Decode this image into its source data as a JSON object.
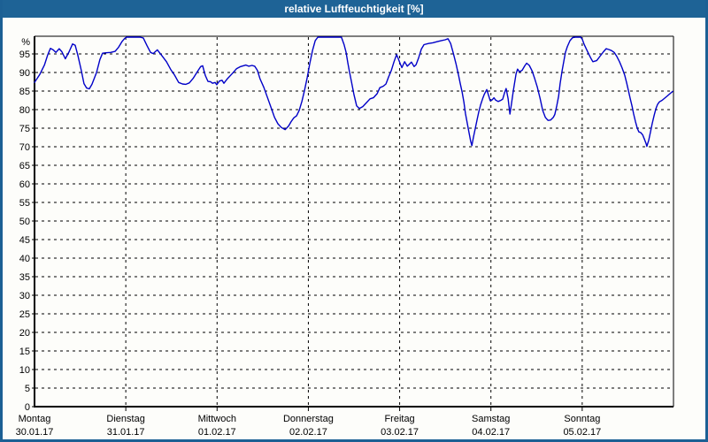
{
  "window": {
    "title": "relative Luftfeuchtigkeit [%]"
  },
  "colors": {
    "titlebar_bg": "#1e6396",
    "titlebar_text": "#ffffff",
    "window_border": "#1c6094",
    "plot_bg": "#fdfdfa",
    "grid": "#000000",
    "axis": "#000000",
    "series_line": "#0000c8"
  },
  "chart_data": {
    "type": "line",
    "title": "relative Luftfeuchtigkeit [%]",
    "ylabel": "%",
    "ylim": [
      0,
      100
    ],
    "yticks": [
      0,
      5,
      10,
      15,
      20,
      25,
      30,
      35,
      40,
      45,
      50,
      55,
      60,
      65,
      70,
      75,
      80,
      85,
      90,
      95
    ],
    "x_unit": "hours since Montag 00:00",
    "xlim": [
      0,
      168
    ],
    "grid": "dashed, horizontal every 5 %, vertical at each midnight",
    "legend_position": "none",
    "days": [
      {
        "name": "Montag",
        "date": "30.01.17"
      },
      {
        "name": "Dienstag",
        "date": "31.01.17"
      },
      {
        "name": "Mittwoch",
        "date": "01.02.17"
      },
      {
        "name": "Donnerstag",
        "date": "02.02.17"
      },
      {
        "name": "Freitag",
        "date": "03.02.17"
      },
      {
        "name": "Samstag",
        "date": "04.02.17"
      },
      {
        "name": "Sonntag",
        "date": "05.02.17"
      }
    ],
    "series": [
      {
        "name": "relative Luftfeuchtigkeit",
        "color": "#0000c8",
        "points": [
          [
            0,
            87.3
          ],
          [
            1.4,
            89.5
          ],
          [
            2.6,
            92.0
          ],
          [
            3.5,
            94.8
          ],
          [
            4.2,
            96.5
          ],
          [
            4.9,
            96.1
          ],
          [
            5.6,
            95.4
          ],
          [
            6.5,
            96.4
          ],
          [
            7.2,
            95.6
          ],
          [
            8.1,
            93.7
          ],
          [
            9.1,
            95.6
          ],
          [
            10.0,
            97.7
          ],
          [
            10.7,
            97.3
          ],
          [
            11.4,
            94.6
          ],
          [
            12.3,
            90.5
          ],
          [
            13.0,
            87.0
          ],
          [
            13.7,
            85.8
          ],
          [
            14.4,
            85.6
          ],
          [
            15.1,
            86.8
          ],
          [
            16.3,
            90.0
          ],
          [
            17.2,
            93.5
          ],
          [
            17.9,
            95.2
          ],
          [
            18.8,
            95.3
          ],
          [
            20.0,
            95.4
          ],
          [
            21.2,
            95.7
          ],
          [
            22.1,
            96.8
          ],
          [
            23.0,
            98.3
          ],
          [
            23.7,
            99.2
          ],
          [
            24.2,
            99.6
          ],
          [
            25.4,
            99.9
          ],
          [
            26.5,
            100
          ],
          [
            27.7,
            99.9
          ],
          [
            28.6,
            99.3
          ],
          [
            29.6,
            97.2
          ],
          [
            30.5,
            95.4
          ],
          [
            31.2,
            95.1
          ],
          [
            32.3,
            96.1
          ],
          [
            33.5,
            94.5
          ],
          [
            34.7,
            92.9
          ],
          [
            35.8,
            90.8
          ],
          [
            36.8,
            89.3
          ],
          [
            37.9,
            87.3
          ],
          [
            38.9,
            86.9
          ],
          [
            39.8,
            86.8
          ],
          [
            40.7,
            87.2
          ],
          [
            41.7,
            88.4
          ],
          [
            42.8,
            90.2
          ],
          [
            43.7,
            91.6
          ],
          [
            44.2,
            91.8
          ],
          [
            44.9,
            89.2
          ],
          [
            45.6,
            87.6
          ],
          [
            46.3,
            87.5
          ],
          [
            46.8,
            87.1
          ],
          [
            47.5,
            87.3
          ],
          [
            47.9,
            86.7
          ],
          [
            48.6,
            87.7
          ],
          [
            49.3,
            87.9
          ],
          [
            49.8,
            87.1
          ],
          [
            50.7,
            88.3
          ],
          [
            51.9,
            89.6
          ],
          [
            53.1,
            91.0
          ],
          [
            54.2,
            91.6
          ],
          [
            55.6,
            92.0
          ],
          [
            56.3,
            91.7
          ],
          [
            57.2,
            91.9
          ],
          [
            57.9,
            91.7
          ],
          [
            58.6,
            90.6
          ],
          [
            59.3,
            88.3
          ],
          [
            60.3,
            86.0
          ],
          [
            61.2,
            83.4
          ],
          [
            62.1,
            80.8
          ],
          [
            63.1,
            77.9
          ],
          [
            64.0,
            76.2
          ],
          [
            64.9,
            75.2
          ],
          [
            65.9,
            74.6
          ],
          [
            66.8,
            75.6
          ],
          [
            67.5,
            76.8
          ],
          [
            68.2,
            77.8
          ],
          [
            68.9,
            78.3
          ],
          [
            69.6,
            79.8
          ],
          [
            70.3,
            82.2
          ],
          [
            71.0,
            85.2
          ],
          [
            71.7,
            88.6
          ],
          [
            72.4,
            92.5
          ],
          [
            73.1,
            96.0
          ],
          [
            73.8,
            98.6
          ],
          [
            74.5,
            99.7
          ],
          [
            75.6,
            99.9
          ],
          [
            77.0,
            99.9
          ],
          [
            78.4,
            99.9
          ],
          [
            79.8,
            99.8
          ],
          [
            80.7,
            99.5
          ],
          [
            81.4,
            97.5
          ],
          [
            81.9,
            95.5
          ],
          [
            82.4,
            92.5
          ],
          [
            82.8,
            90.3
          ],
          [
            83.3,
            87.7
          ],
          [
            84.0,
            84.0
          ],
          [
            84.7,
            81.0
          ],
          [
            85.4,
            80.3
          ],
          [
            86.3,
            80.8
          ],
          [
            87.3,
            81.9
          ],
          [
            88.2,
            82.9
          ],
          [
            89.1,
            83.2
          ],
          [
            90.1,
            84.3
          ],
          [
            90.8,
            85.9
          ],
          [
            91.7,
            86.3
          ],
          [
            92.4,
            86.9
          ],
          [
            93.1,
            88.8
          ],
          [
            93.8,
            90.5
          ],
          [
            94.5,
            92.8
          ],
          [
            95.2,
            94.8
          ],
          [
            95.6,
            93.8
          ],
          [
            96.1,
            92.5
          ],
          [
            96.6,
            91.3
          ],
          [
            97.3,
            92.9
          ],
          [
            98.0,
            91.7
          ],
          [
            98.4,
            92.1
          ],
          [
            99.1,
            92.8
          ],
          [
            99.8,
            91.6
          ],
          [
            100.3,
            92.1
          ],
          [
            101.0,
            94.0
          ],
          [
            101.7,
            96.3
          ],
          [
            102.4,
            97.5
          ],
          [
            103.6,
            97.8
          ],
          [
            104.7,
            98.0
          ],
          [
            105.9,
            98.3
          ],
          [
            107.0,
            98.6
          ],
          [
            108.0,
            98.8
          ],
          [
            108.7,
            99.1
          ],
          [
            109.4,
            97.8
          ],
          [
            110.1,
            95.2
          ],
          [
            110.8,
            92.4
          ],
          [
            111.5,
            89.2
          ],
          [
            111.9,
            87.2
          ],
          [
            112.4,
            84.8
          ],
          [
            112.9,
            82.0
          ],
          [
            113.3,
            79.0
          ],
          [
            113.8,
            76.2
          ],
          [
            114.3,
            73.5
          ],
          [
            114.7,
            71.4
          ],
          [
            115.0,
            70.3
          ],
          [
            115.4,
            72.5
          ],
          [
            115.9,
            75.0
          ],
          [
            116.4,
            77.4
          ],
          [
            116.8,
            79.4
          ],
          [
            117.3,
            81.3
          ],
          [
            117.8,
            82.9
          ],
          [
            118.2,
            84.0
          ],
          [
            118.9,
            85.4
          ],
          [
            119.4,
            83.8
          ],
          [
            119.8,
            82.4
          ],
          [
            120.3,
            82.6
          ],
          [
            120.8,
            83.2
          ],
          [
            121.2,
            82.6
          ],
          [
            121.9,
            82.2
          ],
          [
            122.6,
            82.5
          ],
          [
            123.1,
            82.8
          ],
          [
            123.6,
            84.6
          ],
          [
            124.0,
            85.7
          ],
          [
            124.5,
            83.0
          ],
          [
            125.0,
            78.8
          ],
          [
            125.4,
            81.5
          ],
          [
            125.9,
            85.2
          ],
          [
            126.6,
            89.6
          ],
          [
            127.0,
            90.9
          ],
          [
            127.5,
            90.2
          ],
          [
            128.2,
            90.6
          ],
          [
            128.9,
            91.8
          ],
          [
            129.4,
            92.5
          ],
          [
            130.1,
            91.9
          ],
          [
            130.8,
            90.5
          ],
          [
            131.5,
            88.4
          ],
          [
            132.2,
            86.1
          ],
          [
            132.9,
            83.1
          ],
          [
            133.6,
            79.8
          ],
          [
            134.3,
            77.9
          ],
          [
            135.0,
            77.1
          ],
          [
            135.7,
            77.2
          ],
          [
            136.4,
            77.9
          ],
          [
            136.8,
            78.7
          ],
          [
            137.3,
            81.0
          ],
          [
            137.8,
            83.6
          ],
          [
            138.2,
            87.0
          ],
          [
            138.7,
            90.4
          ],
          [
            139.2,
            93.2
          ],
          [
            139.6,
            95.4
          ],
          [
            140.1,
            97.0
          ],
          [
            140.8,
            98.6
          ],
          [
            141.5,
            99.4
          ],
          [
            142.2,
            99.8
          ],
          [
            143.1,
            99.8
          ],
          [
            143.6,
            99.6
          ],
          [
            144.0,
            99.0
          ],
          [
            144.5,
            97.6
          ],
          [
            145.2,
            96.1
          ],
          [
            145.9,
            94.6
          ],
          [
            146.4,
            93.6
          ],
          [
            146.8,
            92.9
          ],
          [
            147.8,
            93.2
          ],
          [
            148.7,
            94.4
          ],
          [
            149.6,
            95.6
          ],
          [
            150.3,
            96.4
          ],
          [
            151.0,
            96.2
          ],
          [
            151.7,
            95.9
          ],
          [
            152.4,
            95.4
          ],
          [
            153.1,
            94.3
          ],
          [
            153.8,
            92.9
          ],
          [
            154.5,
            91.2
          ],
          [
            155.2,
            89.2
          ],
          [
            155.7,
            87.2
          ],
          [
            156.1,
            85.3
          ],
          [
            156.6,
            83.1
          ],
          [
            157.1,
            80.9
          ],
          [
            157.5,
            78.9
          ],
          [
            158.0,
            76.8
          ],
          [
            158.5,
            74.9
          ],
          [
            158.9,
            74.0
          ],
          [
            159.4,
            73.8
          ],
          [
            159.9,
            73.2
          ],
          [
            160.3,
            72.2
          ],
          [
            160.8,
            70.8
          ],
          [
            161.0,
            70.1
          ],
          [
            161.5,
            71.8
          ],
          [
            162.0,
            74.2
          ],
          [
            162.4,
            76.2
          ],
          [
            162.9,
            78.4
          ],
          [
            163.4,
            80.3
          ],
          [
            163.8,
            81.4
          ],
          [
            164.3,
            82.1
          ],
          [
            165.0,
            82.5
          ],
          [
            165.7,
            83.1
          ],
          [
            166.4,
            83.7
          ],
          [
            167.1,
            84.3
          ],
          [
            167.8,
            84.9
          ]
        ]
      }
    ]
  }
}
